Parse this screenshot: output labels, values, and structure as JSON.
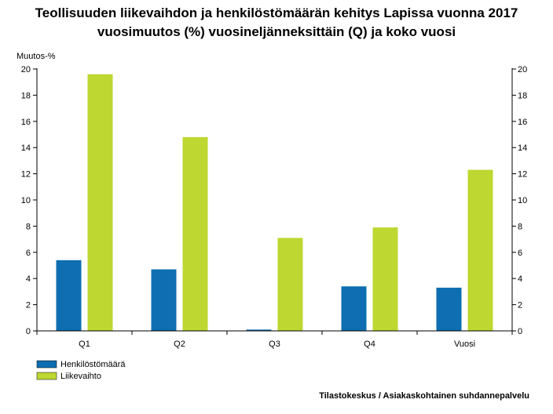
{
  "chart_data": {
    "type": "bar",
    "title": [
      "Teollisuuden liikevaihdon ja henkilöstömäärän kehitys Lapissa vuonna 2017",
      "vuosimuutos (%) vuosineljänneksittäin (Q) ja koko vuosi"
    ],
    "ylabel": "Muutos-%",
    "xlabel": "",
    "categories": [
      "Q1",
      "Q2",
      "Q3",
      "Q4",
      "Vuosi"
    ],
    "series": [
      {
        "name": "Henkilöstömäärä",
        "color": "#0e6eb1",
        "values": [
          5.4,
          4.7,
          0.1,
          3.4,
          3.3
        ]
      },
      {
        "name": "Liikevaihto",
        "color": "#bed731",
        "values": [
          19.6,
          14.8,
          7.1,
          7.9,
          12.3
        ]
      }
    ],
    "ylim": [
      0,
      20
    ],
    "yticks": [
      0,
      2,
      4,
      6,
      8,
      10,
      12,
      14,
      16,
      18,
      20
    ],
    "grid": false,
    "legend": "bottom-left",
    "right_axis": true
  },
  "source": "Tilastokeskus / Asiakaskohtainen suhdannepalvelu"
}
